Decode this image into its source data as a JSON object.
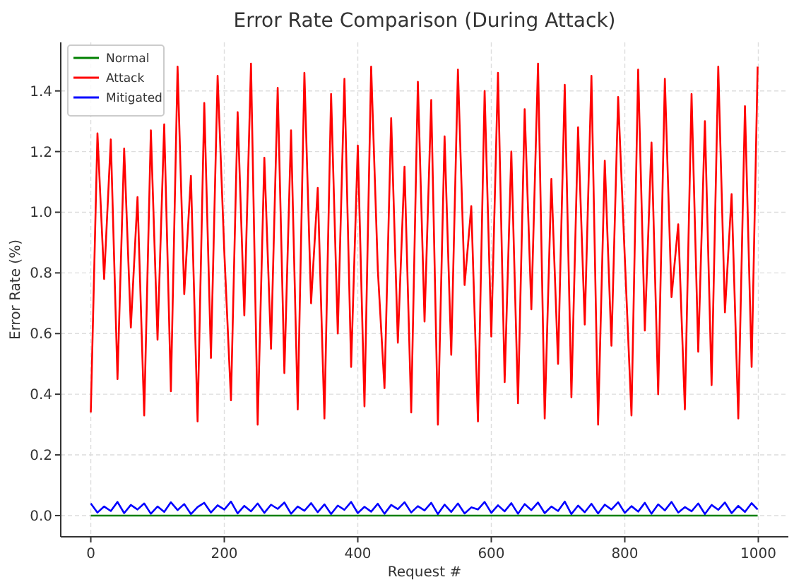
{
  "chart_data": {
    "type": "line",
    "title": "Error Rate Comparison (During Attack)",
    "xlabel": "Request #",
    "ylabel": "Error Rate (%)",
    "xlim": [
      -45,
      1045
    ],
    "xticks": [
      0,
      200,
      400,
      600,
      800,
      1000
    ],
    "ylim": [
      -0.07,
      1.56
    ],
    "yticks": [
      {
        "value": 0,
        "label": "0.0"
      },
      0.2,
      0.4,
      0.6,
      0.8,
      {
        "value": 1,
        "label": "1.0"
      },
      1.2,
      1.4
    ],
    "grid": true,
    "legend": "top left",
    "line_style": "solid",
    "marker": "none",
    "series": [
      {
        "name": "Normal",
        "color": "#008000",
        "x": [
          0,
          999
        ],
        "values": [
          0,
          0
        ]
      },
      {
        "name": "Attack",
        "color": "#ff0000",
        "x": [
          0,
          10,
          20,
          30,
          40,
          50,
          60,
          70,
          80,
          90,
          100,
          110,
          120,
          130,
          140,
          150,
          160,
          170,
          180,
          190,
          200,
          210,
          220,
          230,
          240,
          250,
          260,
          270,
          280,
          290,
          300,
          310,
          320,
          330,
          340,
          350,
          360,
          370,
          380,
          390,
          400,
          410,
          420,
          430,
          440,
          450,
          460,
          470,
          480,
          490,
          500,
          510,
          520,
          530,
          540,
          550,
          560,
          570,
          580,
          590,
          600,
          610,
          620,
          630,
          640,
          650,
          660,
          670,
          680,
          690,
          700,
          710,
          720,
          730,
          740,
          750,
          760,
          770,
          780,
          790,
          800,
          810,
          820,
          830,
          840,
          850,
          860,
          870,
          880,
          890,
          900,
          910,
          920,
          930,
          940,
          950,
          960,
          970,
          980,
          990,
          999
        ],
        "values": [
          0.34,
          1.26,
          0.78,
          1.24,
          0.45,
          1.21,
          0.62,
          1.05,
          0.33,
          1.27,
          0.58,
          1.29,
          0.41,
          1.48,
          0.73,
          1.12,
          0.31,
          1.36,
          0.52,
          1.45,
          0.87,
          0.38,
          1.33,
          0.66,
          1.49,
          0.3,
          1.18,
          0.55,
          1.41,
          0.47,
          1.27,
          0.35,
          1.46,
          0.7,
          1.08,
          0.32,
          1.39,
          0.6,
          1.44,
          0.49,
          1.22,
          0.36,
          1.48,
          0.81,
          0.42,
          1.31,
          0.57,
          1.15,
          0.34,
          1.43,
          0.64,
          1.37,
          0.3,
          1.25,
          0.53,
          1.47,
          0.76,
          1.02,
          0.31,
          1.4,
          0.59,
          1.46,
          0.44,
          1.2,
          0.37,
          1.34,
          0.68,
          1.49,
          0.32,
          1.11,
          0.5,
          1.42,
          0.39,
          1.28,
          0.63,
          1.45,
          0.3,
          1.17,
          0.56,
          1.38,
          0.85,
          0.33,
          1.47,
          0.61,
          1.23,
          0.4,
          1.44,
          0.72,
          0.96,
          0.35,
          1.39,
          0.54,
          1.3,
          0.43,
          1.48,
          0.67,
          1.06,
          0.32,
          1.35,
          0.49,
          1.48
        ]
      },
      {
        "name": "Mitigated",
        "color": "#0000ff",
        "x": [
          0,
          10,
          20,
          30,
          40,
          50,
          60,
          70,
          80,
          90,
          100,
          110,
          120,
          130,
          140,
          150,
          160,
          170,
          180,
          190,
          200,
          210,
          220,
          230,
          240,
          250,
          260,
          270,
          280,
          290,
          300,
          310,
          320,
          330,
          340,
          350,
          360,
          370,
          380,
          390,
          400,
          410,
          420,
          430,
          440,
          450,
          460,
          470,
          480,
          490,
          500,
          510,
          520,
          530,
          540,
          550,
          560,
          570,
          580,
          590,
          600,
          610,
          620,
          630,
          640,
          650,
          660,
          670,
          680,
          690,
          700,
          710,
          720,
          730,
          740,
          750,
          760,
          770,
          780,
          790,
          800,
          810,
          820,
          830,
          840,
          850,
          860,
          870,
          880,
          890,
          900,
          910,
          920,
          930,
          940,
          950,
          960,
          970,
          980,
          990,
          999
        ],
        "values": [
          0.04,
          0.01,
          0.03,
          0.015,
          0.045,
          0.008,
          0.035,
          0.02,
          0.04,
          0.006,
          0.03,
          0.012,
          0.044,
          0.018,
          0.038,
          0.005,
          0.028,
          0.042,
          0.01,
          0.034,
          0.02,
          0.046,
          0.007,
          0.032,
          0.014,
          0.04,
          0.009,
          0.036,
          0.022,
          0.043,
          0.006,
          0.03,
          0.016,
          0.041,
          0.011,
          0.037,
          0.005,
          0.033,
          0.019,
          0.045,
          0.008,
          0.029,
          0.013,
          0.039,
          0.006,
          0.035,
          0.021,
          0.044,
          0.01,
          0.031,
          0.017,
          0.042,
          0.005,
          0.036,
          0.012,
          0.04,
          0.007,
          0.027,
          0.02,
          0.045,
          0.009,
          0.034,
          0.014,
          0.041,
          0.006,
          0.038,
          0.018,
          0.043,
          0.008,
          0.03,
          0.015,
          0.046,
          0.005,
          0.033,
          0.011,
          0.039,
          0.007,
          0.036,
          0.02,
          0.044,
          0.009,
          0.031,
          0.013,
          0.042,
          0.006,
          0.037,
          0.017,
          0.045,
          0.01,
          0.028,
          0.014,
          0.04,
          0.005,
          0.035,
          0.019,
          0.043,
          0.008,
          0.032,
          0.012,
          0.041,
          0.02
        ]
      }
    ]
  }
}
